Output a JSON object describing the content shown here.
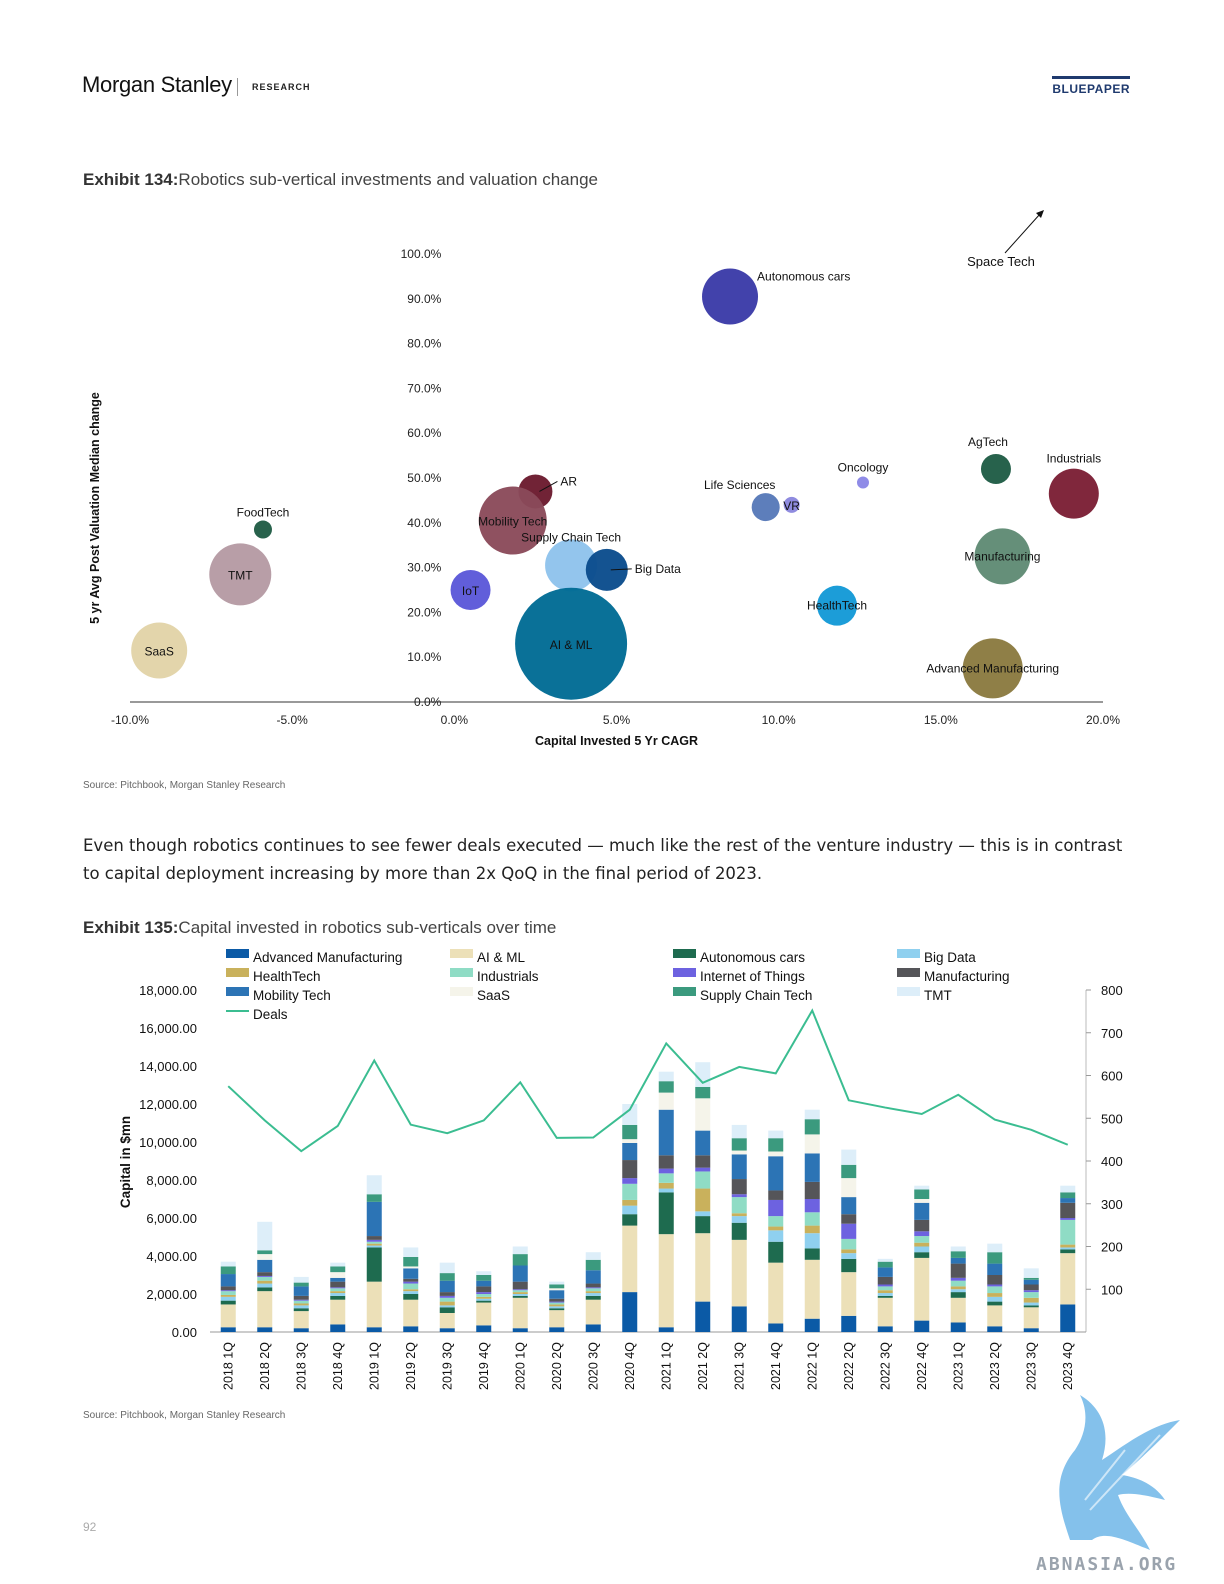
{
  "header": {
    "brand": "Morgan Stanley",
    "brand_sub": "RESEARCH",
    "doc_type": "BLUEPAPER"
  },
  "exhibit134": {
    "label": "Exhibit 134:",
    "title": "Robotics sub-vertical investments and valuation change",
    "source": "Source: Pitchbook, Morgan Stanley Research"
  },
  "paragraph": "Even though robotics continues to see fewer deals executed — much like the rest of the venture industry — this is in contrast to capital deployment increasing by more than 2x QoQ in the final period of 2023.",
  "exhibit135": {
    "label": "Exhibit 135:",
    "title": "Capital invested in robotics sub-verticals over time",
    "source": "Source: Pitchbook, Morgan Stanley Research"
  },
  "page_number": "92",
  "watermark": "ABNASIA.ORG",
  "chart_data": [
    {
      "type": "scatter",
      "title": "",
      "xlabel": "Capital Invested 5 Yr CAGR",
      "ylabel": "5 yr Avg Post Valuation Median change",
      "xlim": [
        -10,
        20
      ],
      "ylim": [
        0,
        100
      ],
      "x_ticks": [
        "-10.0%",
        "-5.0%",
        "0.0%",
        "5.0%",
        "10.0%",
        "15.0%",
        "20.0%"
      ],
      "y_ticks": [
        "0.0%",
        "10.0%",
        "20.0%",
        "30.0%",
        "40.0%",
        "50.0%",
        "60.0%",
        "70.0%",
        "80.0%",
        "90.0%",
        "100.0%"
      ],
      "points": [
        {
          "name": "Autonomous cars",
          "x": 8.5,
          "y": 90.5,
          "r": 28,
          "color": "#3a3aa8"
        },
        {
          "name": "AR",
          "x": 2.5,
          "y": 47,
          "r": 17,
          "color": "#6b1a2e"
        },
        {
          "name": "Mobility Tech",
          "x": 1.8,
          "y": 40.5,
          "r": 34,
          "color": "#8a4a5a"
        },
        {
          "name": "Supply Chain Tech",
          "x": 3.6,
          "y": 30.5,
          "r": 26,
          "color": "#8fc3ec"
        },
        {
          "name": "Big Data",
          "x": 4.7,
          "y": 29.5,
          "r": 21,
          "color": "#0a4c8c"
        },
        {
          "name": "IoT",
          "x": 0.5,
          "y": 25,
          "r": 20,
          "color": "#5b57d9"
        },
        {
          "name": "AI & ML",
          "x": 3.6,
          "y": 13,
          "r": 56,
          "color": "#006b94"
        },
        {
          "name": "FoodTech",
          "x": -5.9,
          "y": 38.5,
          "r": 9,
          "color": "#1f5c45"
        },
        {
          "name": "TMT",
          "x": -6.6,
          "y": 28.5,
          "r": 31,
          "color": "#b59aa3"
        },
        {
          "name": "SaaS",
          "x": -9.1,
          "y": 11.5,
          "r": 28,
          "color": "#e2d3a8"
        },
        {
          "name": "Life Sciences",
          "x": 9.6,
          "y": 43.5,
          "r": 14,
          "color": "#5679b8"
        },
        {
          "name": "VR",
          "x": 10.4,
          "y": 44,
          "r": 8,
          "color": "#8a86de"
        },
        {
          "name": "Oncology",
          "x": 12.6,
          "y": 49,
          "r": 6,
          "color": "#8a86e6"
        },
        {
          "name": "HealthTech",
          "x": 11.8,
          "y": 21.5,
          "r": 20,
          "color": "#1399d6"
        },
        {
          "name": "AgTech",
          "x": 16.7,
          "y": 52,
          "r": 15,
          "color": "#1e5c45"
        },
        {
          "name": "Industrials",
          "x": 19.1,
          "y": 46.5,
          "r": 25,
          "color": "#7b1e34"
        },
        {
          "name": "Manufacturing",
          "x": 16.9,
          "y": 32.5,
          "r": 28,
          "color": "#5f8a74"
        },
        {
          "name": "Advanced Manufacturing",
          "x": 16.6,
          "y": 7.5,
          "r": 30,
          "color": "#8a7a40"
        }
      ],
      "offchart_label": "Space Tech"
    },
    {
      "type": "bar",
      "stacked": true,
      "title": "",
      "ylabel": "Capital in $mn",
      "ylim": [
        0,
        18000
      ],
      "y2lim": [
        0,
        800
      ],
      "y_ticks": [
        "0.00",
        "2,000.00",
        "4,000.00",
        "6,000.00",
        "8,000.00",
        "10,000.00",
        "12,000.00",
        "14,000.00",
        "16,000.00",
        "18,000.00"
      ],
      "y2_ticks": [
        "100",
        "200",
        "300",
        "400",
        "500",
        "600",
        "700",
        "800"
      ],
      "categories": [
        "2018 1Q",
        "2018 2Q",
        "2018 3Q",
        "2018 4Q",
        "2019 1Q",
        "2019 2Q",
        "2019 3Q",
        "2019 4Q",
        "2020 1Q",
        "2020 2Q",
        "2020 3Q",
        "2020 4Q",
        "2021 1Q",
        "2021 2Q",
        "2021 3Q",
        "2021 4Q",
        "2022 1Q",
        "2022 2Q",
        "2022 3Q",
        "2022 4Q",
        "2023 1Q",
        "2023 2Q",
        "2023 3Q",
        "2023 4Q"
      ],
      "legend": [
        "Advanced Manufacturing",
        "AI & ML",
        "Autonomous cars",
        "Big Data",
        "HealthTech",
        "Industrials",
        "Internet of Things",
        "Manufacturing",
        "Mobility Tech",
        "SaaS",
        "Supply Chain Tech",
        "TMT",
        "Deals"
      ],
      "series": [
        {
          "name": "Advanced Manufacturing",
          "color": "#0b5aa6",
          "values": [
            250,
            250,
            200,
            400,
            250,
            300,
            200,
            350,
            200,
            250,
            400,
            2100,
            250,
            1600,
            1350,
            450,
            700,
            850,
            300,
            600,
            500,
            300,
            200,
            1450
          ]
        },
        {
          "name": "AI & ML",
          "color": "#ece0b8",
          "values": [
            1200,
            1900,
            900,
            1300,
            2400,
            1400,
            800,
            1200,
            1600,
            900,
            1300,
            3500,
            4900,
            3600,
            3500,
            3200,
            3100,
            2300,
            1500,
            3300,
            1300,
            1100,
            1100,
            2700
          ]
        },
        {
          "name": "Autonomous cars",
          "color": "#1e6b4f",
          "values": [
            200,
            200,
            150,
            200,
            1800,
            300,
            300,
            100,
            100,
            100,
            200,
            600,
            2200,
            900,
            900,
            1100,
            600,
            700,
            100,
            300,
            300,
            200,
            100,
            200
          ]
        },
        {
          "name": "Big Data",
          "color": "#8fd0ef",
          "values": [
            200,
            200,
            150,
            150,
            100,
            150,
            100,
            100,
            100,
            100,
            150,
            450,
            200,
            250,
            350,
            600,
            800,
            300,
            150,
            300,
            150,
            250,
            150,
            100
          ]
        },
        {
          "name": "HealthTech",
          "color": "#c9b15c",
          "values": [
            100,
            150,
            100,
            100,
            100,
            100,
            200,
            100,
            100,
            100,
            100,
            300,
            300,
            1200,
            150,
            200,
            400,
            200,
            150,
            200,
            150,
            200,
            250,
            150
          ]
        },
        {
          "name": "Industrials",
          "color": "#8fdcc5",
          "values": [
            200,
            200,
            150,
            150,
            100,
            300,
            200,
            150,
            100,
            100,
            150,
            850,
            500,
            900,
            850,
            550,
            700,
            550,
            200,
            350,
            300,
            350,
            300,
            1300
          ]
        },
        {
          "name": "Internet of Things",
          "color": "#6d62e0",
          "values": [
            50,
            50,
            50,
            50,
            100,
            100,
            100,
            100,
            50,
            50,
            50,
            300,
            250,
            200,
            150,
            850,
            700,
            800,
            100,
            250,
            150,
            100,
            100,
            100
          ]
        },
        {
          "name": "Manufacturing",
          "color": "#555559",
          "values": [
            200,
            200,
            200,
            300,
            200,
            150,
            200,
            300,
            400,
            150,
            200,
            950,
            700,
            650,
            800,
            500,
            900,
            500,
            400,
            600,
            750,
            500,
            300,
            800
          ]
        },
        {
          "name": "Mobility Tech",
          "color": "#2c74b5",
          "values": [
            650,
            650,
            500,
            200,
            1800,
            550,
            600,
            300,
            850,
            450,
            700,
            900,
            2400,
            1300,
            1300,
            1800,
            1500,
            900,
            500,
            900,
            300,
            600,
            250,
            250
          ]
        },
        {
          "name": "SaaS",
          "color": "#f5f4ea",
          "values": [
            0,
            300,
            0,
            300,
            0,
            100,
            0,
            0,
            0,
            100,
            0,
            200,
            900,
            1700,
            200,
            250,
            1000,
            1000,
            0,
            200,
            0,
            0,
            0,
            0
          ]
        },
        {
          "name": "Supply Chain Tech",
          "color": "#3b9a7e",
          "values": [
            400,
            200,
            200,
            300,
            400,
            500,
            400,
            300,
            600,
            200,
            550,
            750,
            600,
            600,
            650,
            700,
            800,
            700,
            300,
            500,
            350,
            600,
            100,
            300
          ]
        },
        {
          "name": "TMT",
          "color": "#ddeef9",
          "values": [
            250,
            1500,
            300,
            200,
            1000,
            500,
            550,
            200,
            400,
            150,
            400,
            1100,
            500,
            1300,
            700,
            400,
            500,
            800,
            150,
            200,
            250,
            450,
            500,
            350
          ]
        }
      ],
      "deals": {
        "name": "Deals",
        "color": "#3bbd91",
        "values": [
          575,
          495,
          423,
          482,
          635,
          485,
          465,
          495,
          584,
          454,
          455,
          520,
          675,
          583,
          620,
          605,
          752,
          542,
          525,
          510,
          555,
          497,
          473,
          438
        ]
      }
    }
  ]
}
